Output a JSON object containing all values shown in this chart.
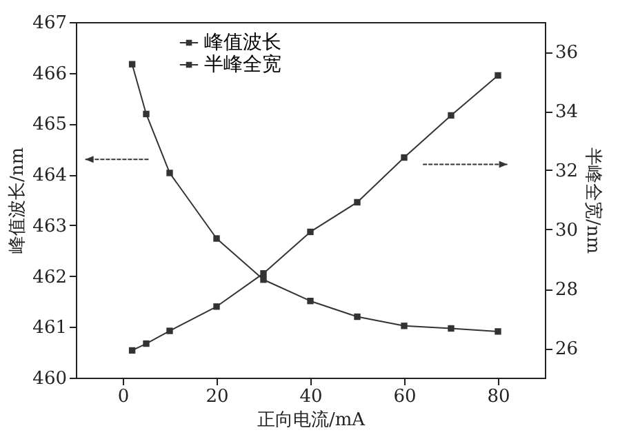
{
  "chart_data": {
    "type": "line",
    "xlabel": "正向电流/mA",
    "ylabel": "峰值波长/nm",
    "y2label": "半峰全宽/nm",
    "x": [
      2,
      5,
      10,
      20,
      30,
      40,
      50,
      60,
      70,
      80
    ],
    "series": [
      {
        "name": "峰值波长",
        "color": "#333333",
        "values": [
          466.17,
          465.19,
          464.03,
          462.74,
          461.93,
          461.51,
          461.2,
          461.02,
          460.97,
          460.91
        ]
      },
      {
        "name": "半峰全宽",
        "color": "#333333",
        "axis": "y2",
        "values": [
          25.92,
          26.15,
          26.58,
          27.4,
          28.52,
          29.92,
          30.92,
          32.43,
          33.85,
          35.2
        ]
      }
    ],
    "xlim": [
      -10,
      90
    ],
    "xticks": [
      0,
      20,
      40,
      60,
      80
    ],
    "ylim": [
      460,
      467
    ],
    "yticks": [
      460,
      461,
      462,
      463,
      464,
      465,
      466,
      467
    ],
    "y2lim": [
      25,
      37
    ],
    "y2ticks": [
      26,
      28,
      30,
      32,
      34,
      36
    ],
    "grid": false,
    "legend": "top left",
    "marker": "square",
    "line_style": "solid"
  }
}
